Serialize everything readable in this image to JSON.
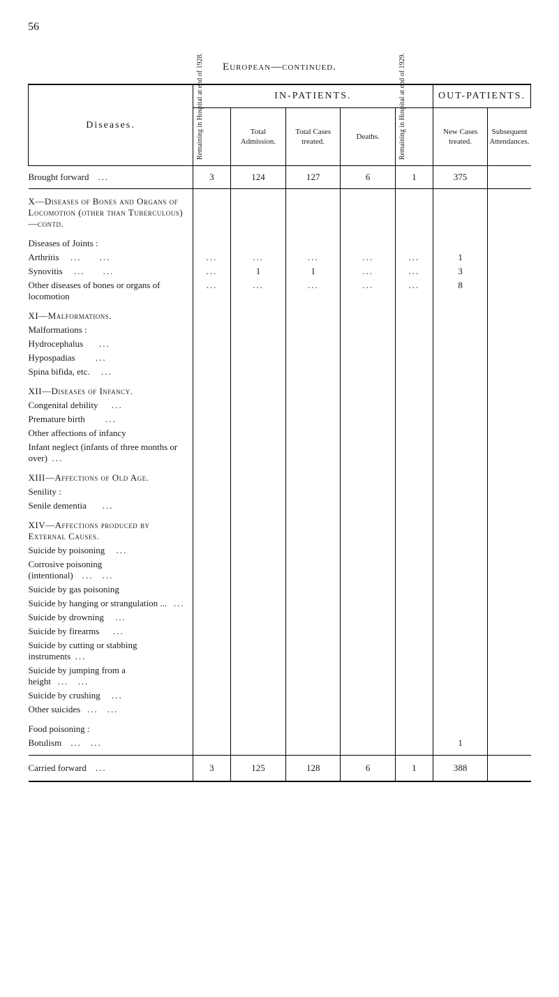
{
  "page": {
    "number": "56",
    "title": "European—continued."
  },
  "headers": {
    "diseases": "Diseases.",
    "in_patients": "IN-PATIENTS.",
    "out_patients": "OUT-PATIENTS.",
    "remaining_1928": "Remaining in Hospital at end of 1928.",
    "total_admission": "Total Admission.",
    "total_cases_treated": "Total Cases treated.",
    "deaths": "Deaths.",
    "remaining_1929": "Remaining in Hospital at end of 1929.",
    "new_cases": "New Cases treated.",
    "subsequent": "Subsequent Attendances."
  },
  "brought_forward": {
    "label": "Brought forward",
    "remaining_1928": "3",
    "total_admission": "124",
    "total_cases": "127",
    "deaths": "6",
    "remaining_1929": "1",
    "new_cases": "375",
    "subsequent": ""
  },
  "sections": {
    "x": {
      "title": "X—Diseases of Bones and Organs of Locomotion (other than Tuberculous)—contd."
    },
    "diseases_joints": {
      "title": "Diseases of Joints :",
      "arthritis": {
        "label": "Arthritis",
        "new_cases": "1"
      },
      "synovitis": {
        "label": "Synovitis",
        "total_admission": "1",
        "total_cases": "1",
        "new_cases": "3"
      },
      "other": {
        "label": "Other diseases of bones or organs of locomotion",
        "new_cases": "8"
      }
    },
    "xi": {
      "title": "XI—Malformations.",
      "sub": "Malformations :",
      "items": [
        "Hydrocephalus",
        "Hypospadias",
        "Spina bifida, etc."
      ]
    },
    "xii": {
      "title": "XII—Diseases of Infancy.",
      "items": [
        "Congenital debility",
        "Premature birth",
        "Other affections of infancy",
        "Infant neglect (infants of three months or over)"
      ]
    },
    "xiii": {
      "title": "XIII—Affections of Old Age.",
      "sub": "Senility :",
      "items": [
        "Senile dementia"
      ]
    },
    "xiv": {
      "title": "XIV—Affections produced by External Causes.",
      "items": [
        "Suicide by poisoning",
        "Corrosive poisoning (intentional)",
        "Suicide by gas poisoning",
        "Suicide by hanging or strangulation ...",
        "Suicide by drowning",
        "Suicide by firearms",
        "Suicide by cutting or stabbing instruments",
        "Suicide by jumping from a height",
        "Suicide by crushing",
        "Other suicides"
      ]
    },
    "food": {
      "title": "Food poisoning :",
      "botulism": {
        "label": "Botulism",
        "new_cases": "1"
      }
    }
  },
  "carried_forward": {
    "label": "Carried forward",
    "remaining_1928": "3",
    "total_admission": "125",
    "total_cases": "128",
    "deaths": "6",
    "remaining_1929": "1",
    "new_cases": "388",
    "subsequent": ""
  }
}
